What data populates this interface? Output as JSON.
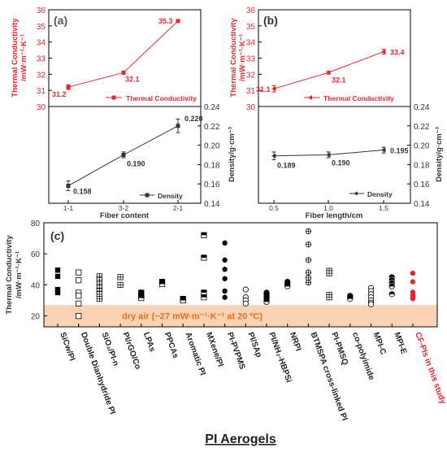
{
  "chart_data": [
    {
      "type": "line",
      "panel_label": "(a)",
      "x_title": "Fiber content",
      "categories": [
        "1-1",
        "3-2",
        "2-1"
      ],
      "top": {
        "ylabel_line1": "Thermal Conductivity",
        "ylabel_line2": "/mW·m⁻¹·K⁻¹",
        "ylim": [
          30,
          36
        ],
        "ticks": [
          "30",
          "31",
          "32",
          "33",
          "34",
          "35",
          "36"
        ],
        "values": [
          31.2,
          32.1,
          35.3
        ],
        "errors": [
          0.15,
          0.1,
          0.05
        ],
        "labels": [
          "31.2",
          "32.1",
          "35.3"
        ],
        "legend": "Thermal Conductivity",
        "color": "#e8262d"
      },
      "bottom": {
        "ylabel": "Density/g·cm⁻³",
        "ylim": [
          0.14,
          0.24
        ],
        "ticks": [
          "0.14",
          "0.16",
          "0.18",
          "0.20",
          "0.22",
          "0.24"
        ],
        "values": [
          0.158,
          0.19,
          0.22
        ],
        "errors": [
          0.005,
          0.003,
          0.007
        ],
        "labels": [
          "0.158",
          "0.190",
          "0.220"
        ],
        "legend": "Density",
        "color": "#333333"
      }
    },
    {
      "type": "line",
      "panel_label": "(b)",
      "x_title": "Fiber length/cm",
      "categories": [
        "0.5",
        "1.0",
        "1.5"
      ],
      "top": {
        "ylabel_line1": "Thermal Conductivity",
        "ylabel_line2": "/mW·m⁻¹·K⁻¹",
        "ylim": [
          30,
          36
        ],
        "ticks": [
          "30",
          "31",
          "32",
          "33",
          "34",
          "35",
          "36"
        ],
        "values": [
          31.1,
          32.1,
          33.4
        ],
        "errors": [
          0.2,
          0.1,
          0.15
        ],
        "labels": [
          "31.1",
          "32.1",
          "33.4"
        ],
        "legend": "Thermal Conductivity",
        "color": "#e8262d"
      },
      "bottom": {
        "ylabel": "Density/g·cm⁻³",
        "ylim": [
          0.14,
          0.24
        ],
        "ticks": [
          "0.14",
          "0.16",
          "0.18",
          "0.20",
          "0.22",
          "0.24"
        ],
        "values": [
          0.189,
          0.19,
          0.195
        ],
        "errors": [
          0.004,
          0.003,
          0.003
        ],
        "labels": [
          "0.189",
          "0.190",
          "0.195"
        ],
        "legend": "Density",
        "color": "#333333"
      }
    },
    {
      "type": "scatter",
      "panel_label": "(c)",
      "ylabel_line1": "Thermal Conductivity",
      "ylabel_line2": "/mW·m⁻¹·K⁻¹",
      "xlabel": "PI Aerogels",
      "ylim": [
        13,
        80
      ],
      "ticks": [
        20,
        40,
        60,
        80
      ],
      "band": {
        "from": 13,
        "to": 27,
        "text": "dry air (~27 mW·m⁻¹·K⁻¹ at 20 ºC)",
        "color": "#fbd3b4",
        "text_color": "#e0701e"
      },
      "series": [
        {
          "label": "SiCw/PI",
          "marker": "square-filled",
          "values": [
            49.5,
            45.5,
            37,
            35
          ]
        },
        {
          "label": "Double Dianhydride PI",
          "marker": "square-open",
          "values": [
            48,
            43,
            35,
            33,
            28,
            20
          ]
        },
        {
          "label": "SiO₂/PI-n",
          "marker": "square-cross",
          "values": [
            45.5,
            43,
            40.5,
            38,
            36,
            34,
            31
          ]
        },
        {
          "label": "PI/rGO/Co",
          "marker": "square-cross",
          "values": [
            45,
            40
          ]
        },
        {
          "label": "LPAs",
          "marker": "half-square",
          "values": [
            35,
            34,
            32.5,
            31.5
          ]
        },
        {
          "label": "PPCAs",
          "marker": "half-square",
          "values": [
            42,
            40.5
          ]
        },
        {
          "label": "Aromatic PI",
          "marker": "half-square",
          "values": [
            31,
            30
          ]
        },
        {
          "label": "MXene/PI",
          "marker": "half-square",
          "values": [
            72,
            57.5,
            35,
            32
          ]
        },
        {
          "label": "PI-PVPMS",
          "marker": "circle-filled",
          "values": [
            67,
            56,
            50,
            44,
            36,
            32
          ]
        },
        {
          "label": "PI/SAp",
          "marker": "circle-open",
          "values": [
            37,
            32,
            30,
            28
          ]
        },
        {
          "label": "PI/NH₂-HBPSi",
          "marker": "half-circle",
          "values": [
            35,
            34,
            33,
            32,
            31,
            30,
            29
          ]
        },
        {
          "label": "NRPI",
          "marker": "half-circle",
          "values": [
            42,
            41,
            40,
            39
          ]
        },
        {
          "label": "BTMSPA cross-linked PI",
          "marker": "circle-cross",
          "values": [
            74.5,
            66,
            56,
            48,
            44.5,
            41.5
          ]
        },
        {
          "label": "PI-PMSQ",
          "marker": "square-cross",
          "values": [
            49,
            47.5,
            33.5,
            32
          ]
        },
        {
          "label": "co-polyimide",
          "marker": "half-circle",
          "values": [
            33,
            32,
            31.5,
            31
          ]
        },
        {
          "label": "MPI-C",
          "marker": "circle-open",
          "values": [
            38,
            36,
            34,
            32,
            30,
            28.5,
            27.5
          ]
        },
        {
          "label": "MPI-E",
          "marker": "half-circle",
          "values": [
            45,
            43,
            41,
            39,
            34
          ]
        },
        {
          "label": "CF-PIs in this study",
          "marker": "circle-red",
          "values": [
            47.5,
            42,
            35.3,
            33.4,
            32.1,
            31.1
          ]
        }
      ],
      "highlight_color": "#e8262d"
    }
  ]
}
